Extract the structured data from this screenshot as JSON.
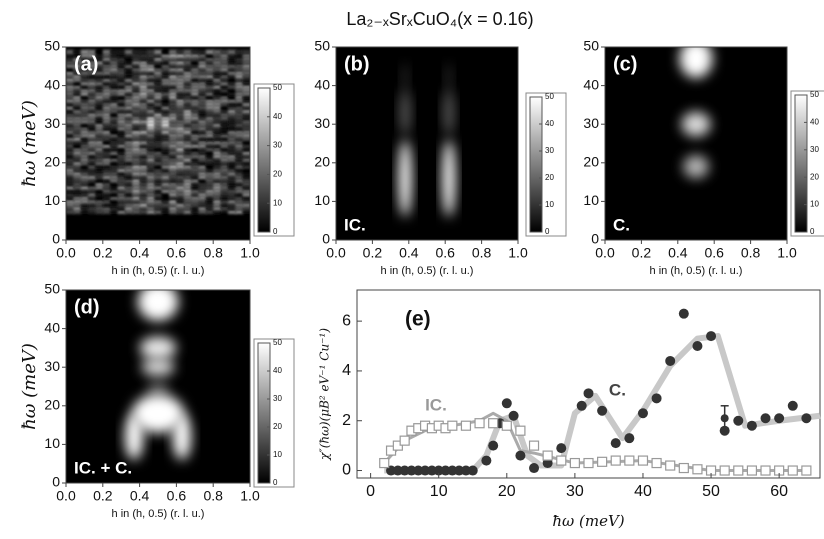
{
  "title": "La₂₋ₓSrₓCuO₄(x = 0.16)",
  "chart_data": [
    {
      "type": "heatmap",
      "panel_label": "(a)",
      "xlabel": "h in (h, 0.5) (r. l. u.)",
      "ylabel": "ħω (meV)",
      "xlim": [
        0,
        1
      ],
      "xticks": [
        {
          "value": 0,
          "label": "0.0"
        },
        0.2,
        0.4,
        0.6,
        0.8,
        {
          "value": 1,
          "label": "1.0"
        }
      ],
      "ylim": [
        0,
        50
      ],
      "yticks": [
        0,
        10,
        20,
        30,
        40,
        50
      ],
      "colorbar": {
        "lim": [
          0,
          50
        ],
        "ticks": [
          0,
          10,
          20,
          30,
          40,
          50
        ]
      }
    },
    {
      "type": "heatmap",
      "panel_label": "(b)",
      "corner_label": "IC.",
      "xlabel": "h in (h, 0.5) (r. l. u.)",
      "xlim": [
        0,
        1
      ],
      "xticks": [
        {
          "value": 0,
          "label": "0.0"
        },
        0.2,
        0.4,
        0.6,
        0.8,
        {
          "value": 1,
          "label": "1.0"
        }
      ],
      "ylim": [
        0,
        50
      ],
      "yticks": [
        0,
        10,
        20,
        30,
        40,
        50
      ],
      "colorbar": {
        "lim": [
          0,
          50
        ],
        "ticks": [
          0,
          10,
          20,
          30,
          40,
          50
        ]
      }
    },
    {
      "type": "heatmap",
      "panel_label": "(c)",
      "corner_label": "C.",
      "xlabel": "h in (h, 0.5) (r. l. u.)",
      "xlim": [
        0,
        1
      ],
      "xticks": [
        {
          "value": 0,
          "label": "0.0"
        },
        0.2,
        0.4,
        0.6,
        0.8,
        {
          "value": 1,
          "label": "1.0"
        }
      ],
      "ylim": [
        0,
        50
      ],
      "yticks": [
        0,
        10,
        20,
        30,
        40,
        50
      ],
      "colorbar": {
        "lim": [
          0,
          50
        ],
        "ticks": [
          0,
          10,
          20,
          30,
          40,
          50
        ]
      }
    },
    {
      "type": "heatmap",
      "panel_label": "(d)",
      "corner_label": "IC. + C.",
      "xlabel": "h in (h, 0.5) (r. l. u.)",
      "ylabel": "ħω (meV)",
      "xlim": [
        0,
        1
      ],
      "xticks": [
        {
          "value": 0,
          "label": "0.0"
        },
        0.2,
        0.4,
        0.6,
        0.8,
        {
          "value": 1,
          "label": "1.0"
        }
      ],
      "ylim": [
        0,
        50
      ],
      "yticks": [
        0,
        10,
        20,
        30,
        40,
        50
      ],
      "colorbar": {
        "lim": [
          0,
          50
        ],
        "ticks": [
          0,
          10,
          20,
          30,
          40,
          50
        ]
      }
    },
    {
      "type": "scatter",
      "panel_label": "(e)",
      "xlabel": "ħω (meV)",
      "ylabel": "χ″(ħω)(μB² eV⁻¹ Cu⁻¹)",
      "xlim": [
        -2,
        66
      ],
      "xticks": [
        0,
        10,
        20,
        30,
        40,
        50,
        60
      ],
      "ylim": [
        -0.3,
        7.25
      ],
      "yticks": [
        0,
        2,
        4,
        6
      ],
      "series": [
        {
          "name": "C.",
          "color": "#333333",
          "marker": "circle",
          "x": [
            3,
            4,
            5,
            6,
            7,
            8,
            9,
            10,
            11,
            12,
            13,
            14,
            15,
            17,
            18,
            19,
            20,
            21,
            22,
            24,
            26,
            28,
            31,
            32,
            34,
            36,
            38,
            40,
            42,
            44,
            46,
            48,
            50,
            52,
            54,
            56,
            58,
            60,
            62,
            64
          ],
          "values": [
            0,
            0,
            0,
            0,
            0,
            0,
            0,
            0,
            0,
            0,
            0,
            0,
            0,
            0.4,
            1.0,
            1.9,
            2.7,
            2.2,
            0.6,
            0.1,
            0.3,
            0.9,
            2.6,
            3.1,
            2.4,
            1.1,
            1.3,
            2.3,
            2.9,
            4.4,
            6.3,
            5.0,
            5.4,
            1.6,
            2.0,
            1.8,
            2.1,
            2.1,
            2.6,
            2.1
          ]
        },
        {
          "name": "IC.",
          "color": "#999999",
          "marker": "square",
          "x": [
            2,
            3,
            4,
            5,
            6,
            7,
            8,
            9,
            10,
            11,
            12,
            14,
            16,
            18,
            20,
            22,
            24,
            26,
            28,
            30,
            32,
            34,
            36,
            38,
            40,
            42,
            44,
            46,
            48,
            50,
            52,
            54,
            56,
            58,
            60,
            62,
            64
          ],
          "values": [
            0.3,
            0.8,
            1.0,
            1.2,
            1.6,
            1.7,
            1.8,
            1.7,
            1.8,
            1.7,
            1.8,
            1.8,
            1.9,
            1.9,
            1.8,
            1.6,
            1.0,
            0.6,
            0.4,
            0.3,
            0.3,
            0.35,
            0.4,
            0.4,
            0.4,
            0.3,
            0.2,
            0.1,
            0.05,
            0,
            0,
            0,
            0,
            0,
            0,
            0,
            0
          ]
        }
      ],
      "fit_lines": [
        {
          "color": "#c8c8c8",
          "x": [
            2,
            15,
            17,
            19,
            21,
            23,
            25,
            28,
            30,
            33,
            37,
            40,
            44,
            48,
            51,
            55,
            60,
            66
          ],
          "values": [
            0,
            0,
            0.6,
            2.0,
            2.2,
            0.6,
            0.2,
            0.2,
            2.3,
            3.0,
            1.3,
            2.4,
            4.2,
            5.3,
            5.4,
            1.8,
            2.0,
            2.2
          ]
        },
        {
          "color": "#aaaaaa",
          "x": [
            2,
            5,
            8,
            12,
            16,
            18,
            20,
            22,
            24,
            30,
            40,
            50,
            64
          ],
          "values": [
            0.3,
            1.2,
            1.6,
            1.8,
            2.0,
            2.3,
            2.0,
            0.8,
            0.7,
            0.3,
            0.4,
            0,
            0
          ]
        }
      ],
      "error_bar": {
        "x": 52,
        "value": 2.1,
        "error": 0.5
      }
    }
  ]
}
